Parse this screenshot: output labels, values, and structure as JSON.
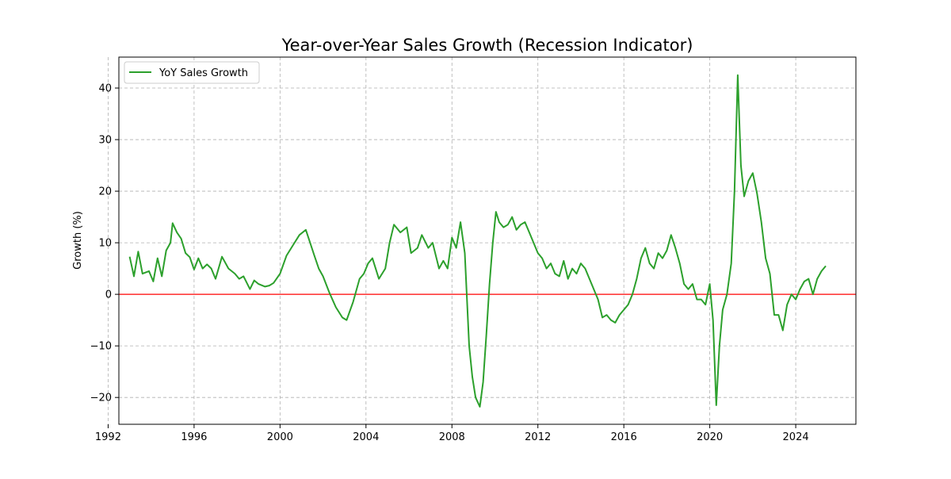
{
  "chart_data": {
    "type": "line",
    "title": "Year-over-Year Sales Growth (Recession Indicator)",
    "xlabel": "",
    "ylabel": "Growth (%)",
    "xlim": [
      1992.5,
      2026.8
    ],
    "ylim": [
      -25.2,
      46
    ],
    "x_ticks": [
      1992,
      1996,
      2000,
      2004,
      2008,
      2012,
      2016,
      2020,
      2024
    ],
    "y_ticks": [
      -20,
      -10,
      0,
      10,
      20,
      30,
      40
    ],
    "grid": true,
    "legend": {
      "position": "top-left",
      "entries": [
        "YoY Sales Growth"
      ]
    },
    "reference_line": {
      "y": 0,
      "color": "#e41a1c"
    },
    "colors": {
      "series": "#2ca02c",
      "zero_line": "#ff0000"
    },
    "series": [
      {
        "name": "YoY Sales Growth",
        "x": [
          1993.0,
          1993.2,
          1993.4,
          1993.6,
          1993.9,
          1994.1,
          1994.3,
          1994.5,
          1994.7,
          1994.9,
          1995.0,
          1995.2,
          1995.4,
          1995.6,
          1995.8,
          1996.0,
          1996.2,
          1996.4,
          1996.6,
          1996.8,
          1997.0,
          1997.3,
          1997.6,
          1997.9,
          1998.1,
          1998.3,
          1998.6,
          1998.8,
          1999.0,
          1999.3,
          1999.5,
          1999.7,
          2000.0,
          2000.3,
          2000.6,
          2000.9,
          2001.2,
          2001.4,
          2001.6,
          2001.8,
          2002.0,
          2002.3,
          2002.6,
          2002.9,
          2003.1,
          2003.4,
          2003.7,
          2003.9,
          2004.1,
          2004.3,
          2004.6,
          2004.9,
          2005.1,
          2005.3,
          2005.6,
          2005.9,
          2006.1,
          2006.4,
          2006.6,
          2006.9,
          2007.1,
          2007.4,
          2007.6,
          2007.8,
          2008.0,
          2008.2,
          2008.4,
          2008.6,
          2008.8,
          2008.95,
          2009.1,
          2009.3,
          2009.45,
          2009.6,
          2009.75,
          2009.9,
          2010.05,
          2010.2,
          2010.4,
          2010.6,
          2010.8,
          2011.0,
          2011.2,
          2011.4,
          2011.6,
          2011.8,
          2012.0,
          2012.2,
          2012.4,
          2012.6,
          2012.8,
          2013.0,
          2013.2,
          2013.4,
          2013.6,
          2013.8,
          2014.0,
          2014.2,
          2014.4,
          2014.6,
          2014.8,
          2015.0,
          2015.2,
          2015.4,
          2015.6,
          2015.8,
          2016.0,
          2016.2,
          2016.4,
          2016.6,
          2016.8,
          2017.0,
          2017.2,
          2017.4,
          2017.6,
          2017.8,
          2018.0,
          2018.2,
          2018.4,
          2018.6,
          2018.8,
          2019.0,
          2019.2,
          2019.4,
          2019.6,
          2019.8,
          2020.0,
          2020.15,
          2020.3,
          2020.45,
          2020.6,
          2020.8,
          2021.0,
          2021.15,
          2021.3,
          2021.45,
          2021.6,
          2021.8,
          2022.0,
          2022.2,
          2022.4,
          2022.6,
          2022.8,
          2023.0,
          2023.2,
          2023.4,
          2023.6,
          2023.8,
          2024.0,
          2024.2,
          2024.4,
          2024.6,
          2024.8,
          2025.0,
          2025.2,
          2025.4
        ],
        "values": [
          7.3,
          3.5,
          8.3,
          4.0,
          4.5,
          2.5,
          7.0,
          3.5,
          8.5,
          10.0,
          13.8,
          12.0,
          10.8,
          8.0,
          7.2,
          4.8,
          7.0,
          5.0,
          5.8,
          5.0,
          3.0,
          7.3,
          5.0,
          4.0,
          3.0,
          3.5,
          1.0,
          2.7,
          2.0,
          1.5,
          1.7,
          2.2,
          4.0,
          7.5,
          9.5,
          11.5,
          12.5,
          10.0,
          7.5,
          5.0,
          3.5,
          0.3,
          -2.5,
          -4.5,
          -5.0,
          -1.5,
          3.0,
          4.0,
          6.0,
          7.0,
          3.0,
          5.0,
          10.0,
          13.5,
          12.0,
          13.0,
          8.0,
          9.0,
          11.5,
          9.0,
          10.0,
          5.0,
          6.5,
          5.0,
          11.0,
          9.0,
          14.0,
          8.0,
          -10.0,
          -16.0,
          -20.0,
          -21.8,
          -17.0,
          -8.0,
          2.0,
          10.0,
          16.0,
          14.0,
          13.0,
          13.5,
          15.0,
          12.5,
          13.5,
          14.0,
          12.0,
          10.0,
          8.0,
          7.0,
          5.0,
          6.0,
          4.0,
          3.5,
          6.5,
          3.0,
          5.0,
          4.0,
          6.0,
          5.0,
          3.0,
          1.0,
          -1.0,
          -4.5,
          -4.0,
          -5.0,
          -5.5,
          -4.0,
          -3.0,
          -2.0,
          0.0,
          3.0,
          7.0,
          9.0,
          6.0,
          5.0,
          8.0,
          7.0,
          8.5,
          11.5,
          9.0,
          6.0,
          2.0,
          1.0,
          2.0,
          -1.0,
          -1.0,
          -2.0,
          2.0,
          -5.0,
          -21.5,
          -10.0,
          -3.0,
          0.0,
          6.0,
          20.0,
          42.5,
          25.0,
          19.0,
          22.0,
          23.5,
          19.5,
          14.0,
          7.0,
          4.0,
          -4.0,
          -4.0,
          -7.0,
          -2.0,
          0.0,
          -1.0,
          1.0,
          2.5,
          3.0,
          0.0,
          3.0,
          4.5,
          5.5
        ]
      }
    ]
  }
}
